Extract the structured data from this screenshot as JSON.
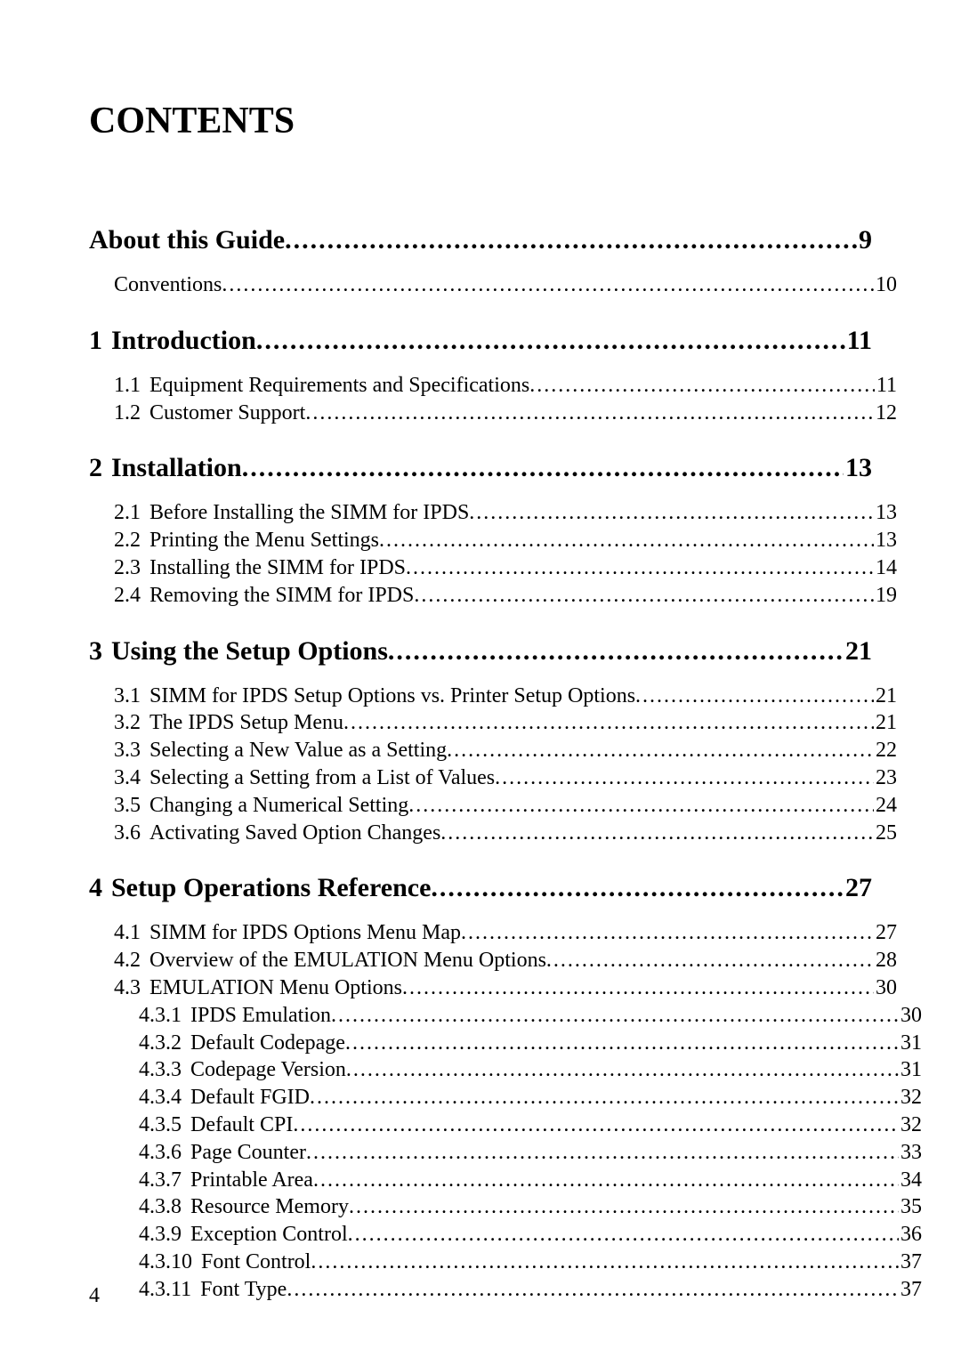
{
  "title": "CONTENTS",
  "page_number": "4",
  "colors": {
    "text": "#000000",
    "background": "#ffffff"
  },
  "typography": {
    "title_fontsize": 42,
    "chapter_fontsize": 30,
    "body_fontsize": 24,
    "font_family": "Times New Roman"
  },
  "toc": [
    {
      "level": 0,
      "num": "",
      "label": "About this Guide",
      "page": "9"
    },
    {
      "level": 1,
      "num": "",
      "label": "Conventions",
      "page": "10"
    },
    {
      "level": 0,
      "num": "1",
      "label": "Introduction",
      "page": "11"
    },
    {
      "level": 1,
      "num": "1.1",
      "label": "Equipment Requirements and Specifications",
      "page": "11"
    },
    {
      "level": 1,
      "num": "1.2",
      "label": "Customer Support",
      "page": "12"
    },
    {
      "level": 0,
      "num": "2",
      "label": "Installation",
      "page": "13"
    },
    {
      "level": 1,
      "num": "2.1",
      "label": "Before Installing the SIMM for IPDS",
      "page": "13"
    },
    {
      "level": 1,
      "num": "2.2",
      "label": "Printing the Menu Settings",
      "page": "13"
    },
    {
      "level": 1,
      "num": "2.3",
      "label": "Installing the SIMM for IPDS",
      "page": "14"
    },
    {
      "level": 1,
      "num": "2.4",
      "label": "Removing the SIMM for IPDS",
      "page": "19"
    },
    {
      "level": 0,
      "num": "3",
      "label": "Using the Setup Options",
      "page": "21"
    },
    {
      "level": 1,
      "num": "3.1",
      "label": "SIMM for IPDS Setup Options vs. Printer Setup Options",
      "page": "21"
    },
    {
      "level": 1,
      "num": "3.2",
      "label": "The IPDS Setup Menu",
      "page": "21"
    },
    {
      "level": 1,
      "num": "3.3",
      "label": "Selecting a New Value as a Setting",
      "page": "22"
    },
    {
      "level": 1,
      "num": "3.4",
      "label": "Selecting a Setting from a List of Values",
      "page": "23"
    },
    {
      "level": 1,
      "num": "3.5",
      "label": "Changing a Numerical Setting",
      "page": "24"
    },
    {
      "level": 1,
      "num": "3.6",
      "label": "Activating Saved Option Changes",
      "page": "25"
    },
    {
      "level": 0,
      "num": "4",
      "label": "Setup Operations Reference",
      "page": "27"
    },
    {
      "level": 1,
      "num": "4.1",
      "label": "SIMM for IPDS Options Menu Map",
      "page": "27"
    },
    {
      "level": 1,
      "num": "4.2",
      "label": "Overview of the EMULATION Menu Options",
      "page": "28"
    },
    {
      "level": 1,
      "num": "4.3",
      "label": "EMULATION Menu Options",
      "page": "30"
    },
    {
      "level": 2,
      "num": "4.3.1",
      "label": "IPDS Emulation",
      "page": "30"
    },
    {
      "level": 2,
      "num": "4.3.2",
      "label": "Default Codepage",
      "page": "31"
    },
    {
      "level": 2,
      "num": "4.3.3",
      "label": "Codepage Version",
      "page": "31"
    },
    {
      "level": 2,
      "num": "4.3.4",
      "label": "Default FGID",
      "page": "32"
    },
    {
      "level": 2,
      "num": "4.3.5",
      "label": "Default CPI",
      "page": "32"
    },
    {
      "level": 2,
      "num": "4.3.6",
      "label": "Page Counter",
      "page": "33"
    },
    {
      "level": 2,
      "num": "4.3.7",
      "label": "Printable Area",
      "page": "34"
    },
    {
      "level": 2,
      "num": "4.3.8",
      "label": "Resource Memory",
      "page": "35"
    },
    {
      "level": 2,
      "num": "4.3.9",
      "label": "Exception Control",
      "page": "36"
    },
    {
      "level": 2,
      "num": "4.3.10",
      "label": "Font Control",
      "page": "37"
    },
    {
      "level": 2,
      "num": "4.3.11",
      "label": "Font Type",
      "page": "37"
    }
  ]
}
